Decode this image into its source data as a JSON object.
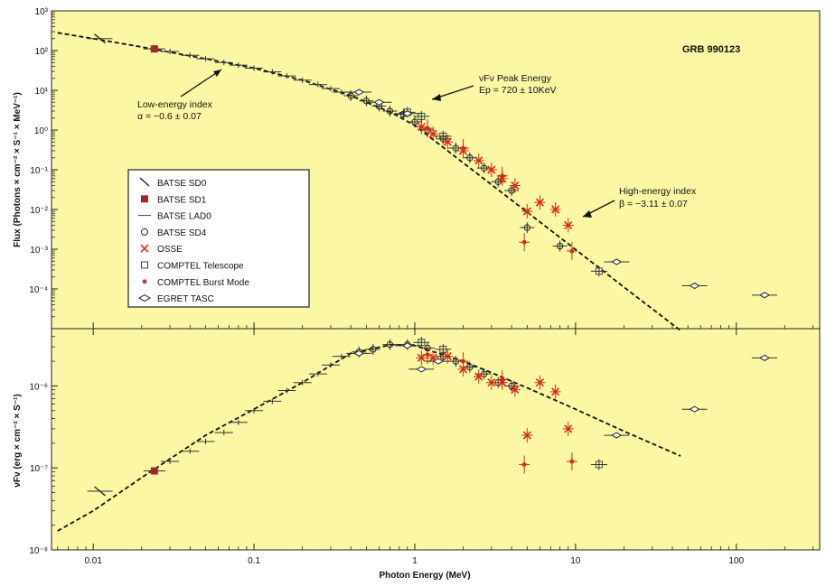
{
  "colors": {
    "background": "#fbf7a4",
    "frame": "#222222",
    "fit": "#111111",
    "red": "#d62a1a",
    "darkred": "#9b2a2a"
  },
  "figure_title": "GRB 990123",
  "xlabel": "Photon Energy (MeV)",
  "x_ticks": [
    "0.01",
    "0.1",
    "1",
    "10",
    "100"
  ],
  "top_ticks": [
    "10³",
    "10²",
    "10¹",
    "10⁰",
    "10⁻¹",
    "10⁻²",
    "10⁻³",
    "10⁻⁴"
  ],
  "bottom_ticks": [
    "10⁻⁶",
    "10⁻⁷",
    "10⁻⁸"
  ],
  "top_ylabel": "Flux (Photons × cm⁻² × S⁻¹ × MeV⁻¹)",
  "bottom_ylabel": "νFν (erg × cm⁻² × S⁻¹)",
  "annotations": {
    "low_index_title": "Low-energy index",
    "low_index_value": "α = −0.6 ± 0.07",
    "peak_title": "νFν Peak Energy",
    "peak_value": "Ep = 720 ± 10KeV",
    "high_index_title": "High-energy index",
    "high_index_value": "β = −3.11 ± 0.07"
  },
  "legend": [
    {
      "label": "BATSE SD0",
      "symbol": "slash"
    },
    {
      "label": "BATSE SD1",
      "symbol": "square-filled"
    },
    {
      "label": "BATSE LAD0",
      "symbol": "line"
    },
    {
      "label": "BATSE SD4",
      "symbol": "circle"
    },
    {
      "label": "OSSE",
      "symbol": "x-red"
    },
    {
      "label": "COMPTEL Telescope",
      "symbol": "square-open"
    },
    {
      "label": "COMPTEL Burst Mode",
      "symbol": "dot-red"
    },
    {
      "label": "EGRET TASC",
      "symbol": "diamond"
    }
  ],
  "chart_data": [
    {
      "type": "scatter",
      "panel": "top",
      "xscale": "log",
      "yscale": "log",
      "xlim": [
        0.0055,
        330
      ],
      "ylim": [
        1e-05,
        1000
      ],
      "xlabel": "Photon Energy (MeV)",
      "ylabel": "Flux (Photons × cm⁻² × S⁻¹ × MeV⁻¹)",
      "fit": {
        "style": "dashed",
        "x": [
          0.006,
          0.01,
          0.02,
          0.05,
          0.1,
          0.2,
          0.4,
          0.72,
          1,
          2,
          5,
          10,
          20,
          45
        ],
        "y": [
          280,
          200,
          123,
          62,
          36,
          18,
          7.3,
          2.7,
          1.3,
          0.15,
          0.0086,
          0.00098,
          0.000111,
          8.98e-06
        ]
      },
      "series": [
        {
          "name": "BATSE SD0",
          "points": [
            [
              0.011,
              200
            ]
          ]
        },
        {
          "name": "BATSE SD1",
          "points": [
            [
              0.024,
              110
            ]
          ]
        },
        {
          "name": "BATSE LAD0",
          "points": [
            [
              0.03,
              95
            ],
            [
              0.04,
              76
            ],
            [
              0.05,
              62
            ],
            [
              0.065,
              50
            ],
            [
              0.08,
              43
            ],
            [
              0.1,
              36
            ],
            [
              0.13,
              29
            ],
            [
              0.16,
              23
            ],
            [
              0.2,
              18
            ],
            [
              0.25,
              14
            ],
            [
              0.3,
              11
            ],
            [
              0.35,
              9
            ]
          ]
        },
        {
          "name": "BATSE SD4",
          "points": [
            [
              0.4,
              7.3
            ],
            [
              0.5,
              5.4
            ],
            [
              0.6,
              4
            ],
            [
              0.7,
              3
            ],
            [
              0.85,
              2.5
            ],
            [
              1.0,
              1.6
            ],
            [
              1.2,
              1.0
            ],
            [
              1.5,
              0.6
            ],
            [
              1.8,
              0.35
            ],
            [
              2.2,
              0.2
            ],
            [
              2.7,
              0.11
            ],
            [
              3.3,
              0.05
            ],
            [
              4,
              0.03
            ],
            [
              5,
              0.0035
            ],
            [
              8,
              0.0012
            ]
          ]
        },
        {
          "name": "OSSE",
          "points": [
            [
              1.1,
              1.2
            ],
            [
              1.3,
              0.8
            ],
            [
              1.6,
              0.5
            ],
            [
              2.0,
              0.3
            ],
            [
              2.5,
              0.17
            ],
            [
              3.0,
              0.1
            ],
            [
              3.5,
              0.06
            ],
            [
              4.2,
              0.04
            ],
            [
              5.0,
              0.009
            ],
            [
              6.0,
              0.015
            ],
            [
              7.5,
              0.01
            ],
            [
              9.0,
              0.004
            ]
          ]
        },
        {
          "name": "COMPTEL Telescope",
          "points": [
            [
              0.9,
              2.8
            ],
            [
              1.1,
              2.2
            ],
            [
              1.5,
              0.7
            ],
            [
              14,
              0.00028
            ]
          ]
        },
        {
          "name": "COMPTEL Burst Mode",
          "points": [
            [
              1.2,
              1.1
            ],
            [
              2.0,
              0.35
            ],
            [
              3.5,
              0.07
            ],
            [
              4.8,
              0.0015
            ],
            [
              9.5,
              0.0009
            ]
          ]
        },
        {
          "name": "EGRET TASC",
          "points": [
            [
              0.45,
              9
            ],
            [
              0.6,
              5
            ],
            [
              0.9,
              2.6
            ],
            [
              18,
              0.00048
            ],
            [
              55,
              0.00012
            ],
            [
              150,
              7e-05
            ]
          ]
        }
      ]
    },
    {
      "type": "scatter",
      "panel": "bottom",
      "xscale": "log",
      "yscale": "log",
      "xlim": [
        0.0055,
        330
      ],
      "ylim": [
        1e-08,
        5e-06
      ],
      "xlabel": "Photon Energy (MeV)",
      "ylabel": "νFν (erg × cm⁻² × S⁻¹)",
      "fit": {
        "style": "dashed",
        "x": [
          0.006,
          0.01,
          0.02,
          0.05,
          0.1,
          0.2,
          0.4,
          0.72,
          1,
          2,
          3,
          5,
          10,
          20,
          45
        ],
        "y": [
          1.7e-08,
          3e-08,
          7.6e-08,
          2.5e-07,
          5.2e-07,
          1.1e-06,
          2.5e-06,
          3.2e-06,
          3.1e-06,
          2e-06,
          1.45e-06,
          9.5e-07,
          5.2e-07,
          2.8e-07,
          1.4e-07
        ]
      },
      "series": [
        {
          "name": "BATSE SD0",
          "points": [
            [
              0.011,
              5.2e-08
            ]
          ]
        },
        {
          "name": "BATSE SD1",
          "points": [
            [
              0.024,
              9.2e-08
            ]
          ]
        },
        {
          "name": "BATSE LAD0",
          "points": [
            [
              0.03,
              1.2e-07
            ],
            [
              0.04,
              1.6e-07
            ],
            [
              0.05,
              2.1e-07
            ],
            [
              0.065,
              2.7e-07
            ],
            [
              0.08,
              3.6e-07
            ],
            [
              0.1,
              5e-07
            ],
            [
              0.13,
              6.5e-07
            ],
            [
              0.16,
              8.8e-07
            ],
            [
              0.2,
              1.1e-06
            ],
            [
              0.25,
              1.4e-06
            ],
            [
              0.3,
              1.8e-06
            ],
            [
              0.35,
              2.3e-06
            ]
          ]
        },
        {
          "name": "BATSE SD4",
          "points": [
            [
              0.45,
              2.6e-06
            ],
            [
              0.55,
              2.8e-06
            ],
            [
              0.7,
              3.2e-06
            ],
            [
              0.9,
              3.2e-06
            ],
            [
              1.2,
              2.9e-06
            ],
            [
              1.5,
              2.3e-06
            ],
            [
              1.8,
              2e-06
            ],
            [
              2.2,
              1.7e-06
            ],
            [
              2.7,
              1.4e-06
            ],
            [
              3.3,
              1.1e-06
            ],
            [
              4,
              1e-06
            ]
          ]
        },
        {
          "name": "OSSE",
          "points": [
            [
              1.1,
              2.2e-06
            ],
            [
              1.3,
              2.2e-06
            ],
            [
              1.6,
              2.3e-06
            ],
            [
              2.0,
              1.6e-06
            ],
            [
              2.5,
              1.3e-06
            ],
            [
              3.0,
              1.1e-06
            ],
            [
              3.5,
              1.1e-06
            ],
            [
              4.2,
              9e-07
            ],
            [
              5.0,
              2.5e-07
            ],
            [
              6.0,
              1.1e-06
            ],
            [
              7.5,
              8.5e-07
            ],
            [
              9.0,
              3e-07
            ]
          ]
        },
        {
          "name": "COMPTEL Telescope",
          "points": [
            [
              1.1,
              3.4e-06
            ],
            [
              1.5,
              2.8e-06
            ],
            [
              14,
              1.1e-07
            ]
          ]
        },
        {
          "name": "COMPTEL Burst Mode",
          "points": [
            [
              1.2,
              2.4e-06
            ],
            [
              2.0,
              2e-06
            ],
            [
              3.5,
              1.2e-06
            ],
            [
              4.8,
              1.1e-07
            ],
            [
              9.5,
              1.2e-07
            ]
          ]
        },
        {
          "name": "EGRET TASC",
          "points": [
            [
              0.45,
              2.5e-06
            ],
            [
              0.9,
              3.1e-06
            ],
            [
              1.1,
              1.6e-06
            ],
            [
              1.4,
              2e-06
            ],
            [
              18,
              2.5e-07
            ],
            [
              55,
              5.2e-07
            ],
            [
              150,
              2.2e-06
            ]
          ]
        }
      ]
    }
  ]
}
